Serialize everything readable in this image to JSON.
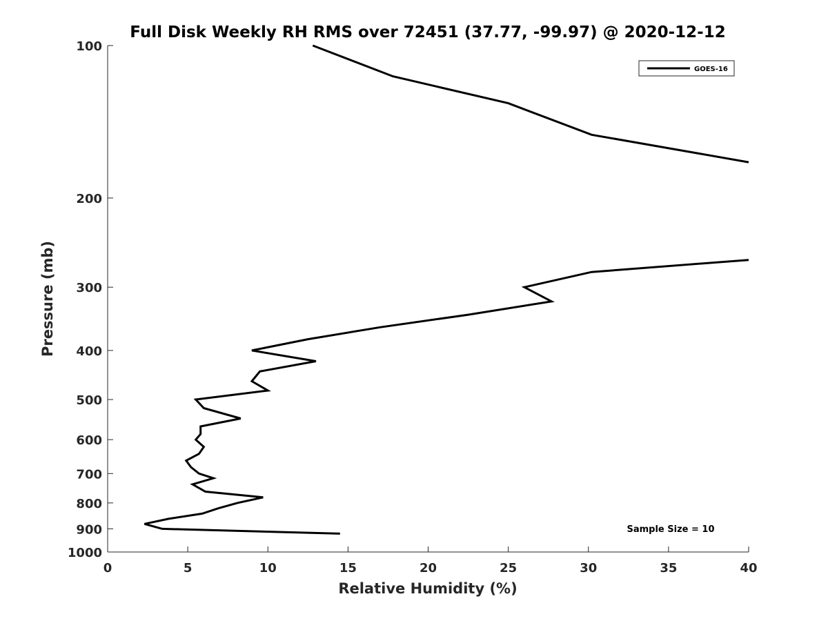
{
  "chart_data": {
    "type": "line",
    "title": "Full Disk Weekly RH RMS over 72451 (37.77, -99.97) @ 2020-12-12",
    "xlabel": "Relative Humidity (%)",
    "ylabel": "Pressure (mb)",
    "xlim": [
      0,
      40
    ],
    "ylim": [
      100,
      1000
    ],
    "y_scale": "log",
    "y_reversed": true,
    "x_ticks": [
      0,
      5,
      10,
      15,
      20,
      25,
      30,
      35,
      40
    ],
    "y_ticks": [
      100,
      200,
      300,
      400,
      500,
      600,
      700,
      800,
      900,
      1000
    ],
    "grid": false,
    "legend": "top-right",
    "annotation": "Sample Size = 10",
    "series": [
      {
        "name": "GOES-16",
        "color": "#000000",
        "segments": [
          [
            {
              "x": 12.8,
              "y": 100
            },
            {
              "x": 17.8,
              "y": 115
            },
            {
              "x": 25.0,
              "y": 130
            },
            {
              "x": 30.2,
              "y": 150
            },
            {
              "x": 40.0,
              "y": 170
            }
          ],
          [
            {
              "x": 40.0,
              "y": 265
            },
            {
              "x": 30.2,
              "y": 280
            },
            {
              "x": 26.0,
              "y": 300
            },
            {
              "x": 27.7,
              "y": 320
            },
            {
              "x": 22.5,
              "y": 340
            },
            {
              "x": 17.0,
              "y": 360
            },
            {
              "x": 12.5,
              "y": 380
            },
            {
              "x": 9.0,
              "y": 400
            },
            {
              "x": 13.0,
              "y": 420
            },
            {
              "x": 9.5,
              "y": 440
            },
            {
              "x": 9.0,
              "y": 460
            },
            {
              "x": 10.0,
              "y": 480
            },
            {
              "x": 5.5,
              "y": 500
            },
            {
              "x": 6.0,
              "y": 520
            },
            {
              "x": 8.3,
              "y": 545
            },
            {
              "x": 5.8,
              "y": 565
            },
            {
              "x": 5.8,
              "y": 585
            },
            {
              "x": 5.5,
              "y": 600
            },
            {
              "x": 6.0,
              "y": 620
            },
            {
              "x": 5.7,
              "y": 640
            },
            {
              "x": 4.9,
              "y": 660
            },
            {
              "x": 5.2,
              "y": 680
            },
            {
              "x": 5.7,
              "y": 700
            },
            {
              "x": 6.6,
              "y": 715
            },
            {
              "x": 5.3,
              "y": 735
            },
            {
              "x": 6.1,
              "y": 760
            },
            {
              "x": 9.7,
              "y": 780
            },
            {
              "x": 8.1,
              "y": 800
            },
            {
              "x": 6.9,
              "y": 820
            },
            {
              "x": 5.9,
              "y": 840
            },
            {
              "x": 3.8,
              "y": 860
            },
            {
              "x": 2.3,
              "y": 880
            },
            {
              "x": 3.4,
              "y": 900
            },
            {
              "x": 14.5,
              "y": 920
            }
          ]
        ]
      }
    ]
  }
}
